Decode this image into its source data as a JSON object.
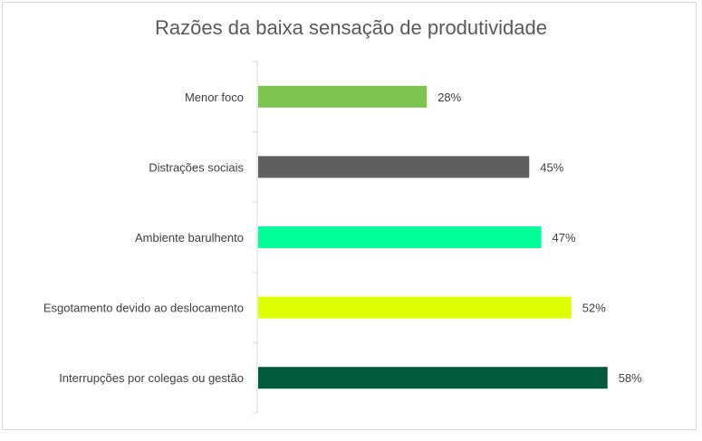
{
  "chart_data": {
    "type": "bar",
    "orientation": "horizontal",
    "title": "Razões da baixa sensação de produtividade",
    "categories": [
      "Menor foco",
      "Distrações sociais",
      "Ambiente barulhento",
      "Esgotamento devido ao deslocamento",
      "Interrupções por colegas ou gestão"
    ],
    "values": [
      28,
      45,
      47,
      52,
      58
    ],
    "value_labels": [
      "28%",
      "45%",
      "47%",
      "52%",
      "58%"
    ],
    "colors": [
      "#7DC34F",
      "#5F5F5F",
      "#00FF99",
      "#DDFF00",
      "#005A3C"
    ],
    "xlim": [
      0,
      100
    ],
    "xlabel": "",
    "ylabel": "",
    "grid": false,
    "legend": "none"
  }
}
